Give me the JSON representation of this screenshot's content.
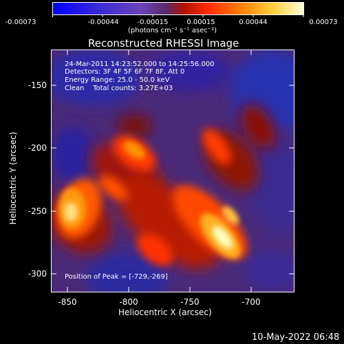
{
  "colorbar": {
    "ticks": [
      "-0.00073",
      "-0.00044",
      "-0.00015",
      "0.00015",
      "0.00044",
      "0.00073"
    ],
    "units": "(photons cm⁻² s⁻¹ asec⁻²)"
  },
  "plot": {
    "title": "Reconstructed RHESSI Image",
    "annotations": {
      "time_range": "24-Mar-2011 14:23:52.000 to 14:25:56.000",
      "detectors": "Detectors: 3F 4F 5F 6F 7F 8F, Att 0",
      "energy": "Energy Range: 25.0 - 50.0 keV",
      "clean_counts": "Clean    Total counts: 3.27E+03",
      "peak": "Position of Peak = [-729,-269]"
    },
    "x_axis": {
      "label": "Heliocentric X (arcsec)",
      "ticks": [
        "-850",
        "-800",
        "-750",
        "-700"
      ],
      "range": [
        -860,
        -670
      ]
    },
    "y_axis": {
      "label": "Heliocentric Y (arcsec)",
      "ticks": [
        "-150",
        "-200",
        "-250",
        "-300"
      ],
      "range": [
        -310,
        -130
      ]
    },
    "peak_position": [
      -729,
      -269
    ]
  },
  "footer": {
    "date": "10-May-2022 06:48"
  },
  "colors": {
    "background": "#000000",
    "text": "#ffffff",
    "colormap": [
      "#0000ff",
      "#3a1bd0",
      "#6a3aa0",
      "#8a2020",
      "#c01000",
      "#ff3000",
      "#ff8000",
      "#ffc000",
      "#ffff90",
      "#ffffff"
    ]
  }
}
